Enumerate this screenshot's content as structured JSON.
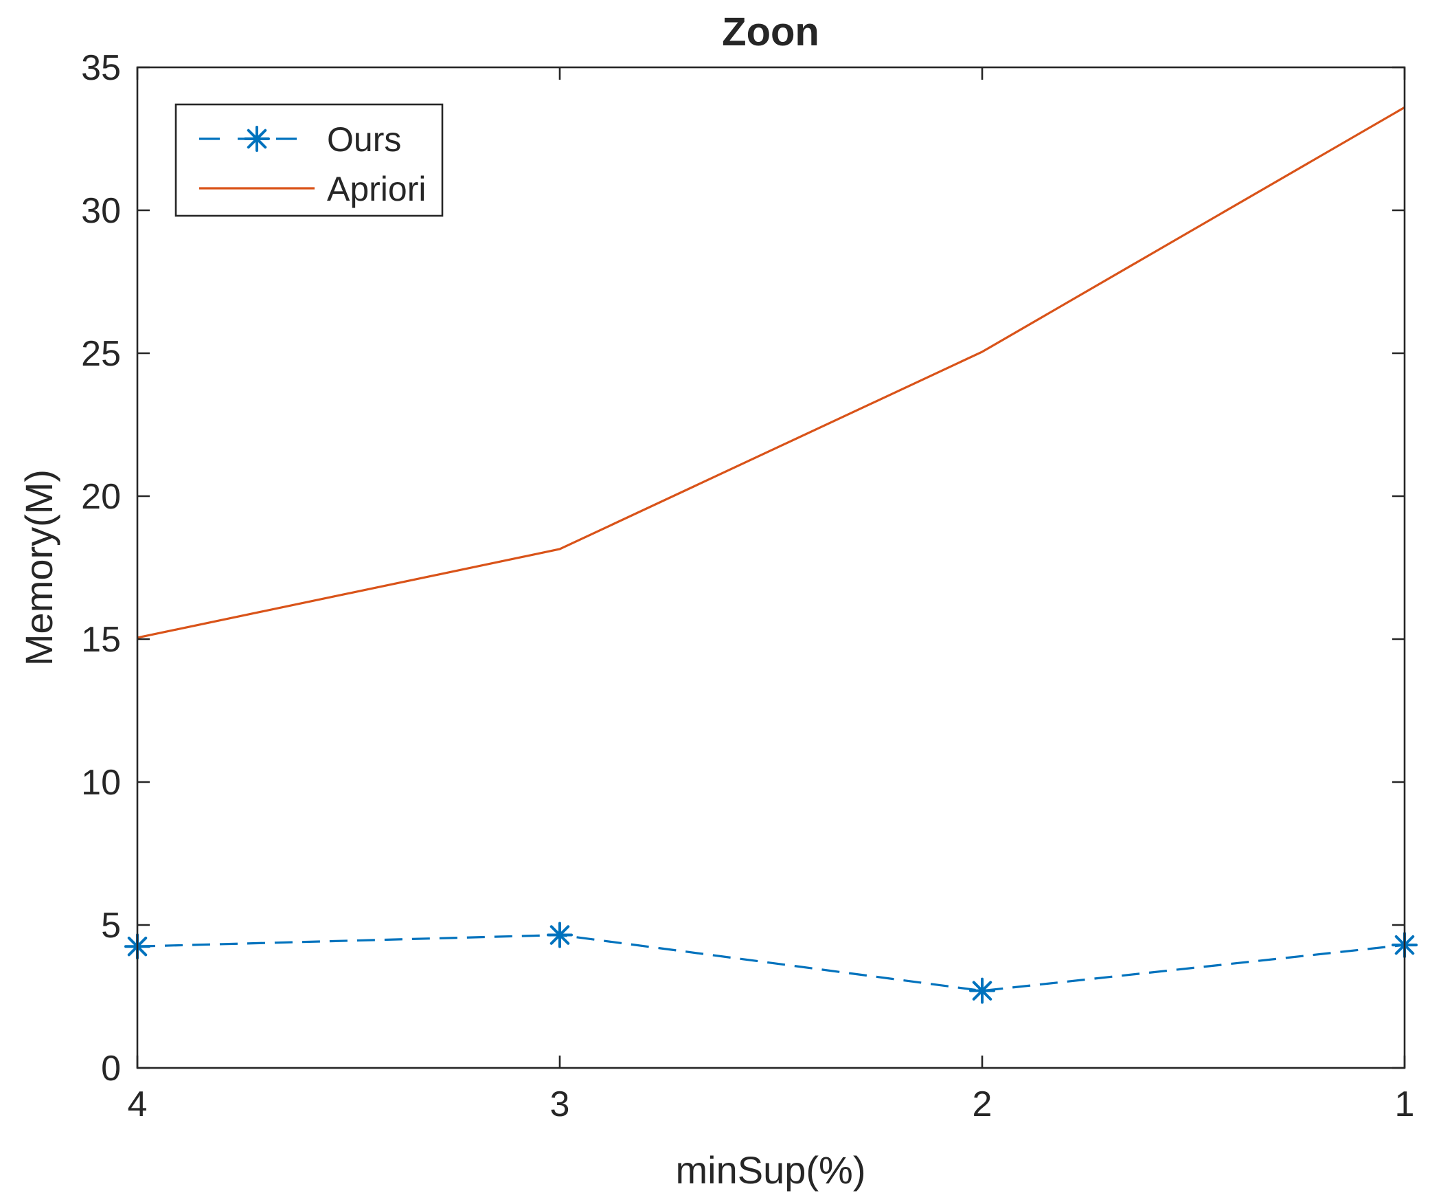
{
  "chart_data": {
    "type": "line",
    "title": "Zoon",
    "xlabel": "minSup(%)",
    "ylabel": "Memory(M)",
    "x": [
      4,
      3,
      2,
      1
    ],
    "x_reversed": true,
    "xlim": [
      4,
      1
    ],
    "ylim": [
      0,
      35
    ],
    "xticks": [
      4,
      3,
      2,
      1
    ],
    "yticks": [
      0,
      5,
      10,
      15,
      20,
      25,
      30,
      35
    ],
    "grid": false,
    "legend_position": "top-left",
    "series": [
      {
        "name": "Ours",
        "values": [
          4.25,
          4.65,
          2.7,
          4.3
        ],
        "color": "#0072BD",
        "line_style": "dashed",
        "marker": "asterisk"
      },
      {
        "name": "Apriori",
        "values": [
          15.05,
          18.15,
          25.05,
          33.6
        ],
        "color": "#D95319",
        "line_style": "solid",
        "marker": "none"
      }
    ]
  }
}
